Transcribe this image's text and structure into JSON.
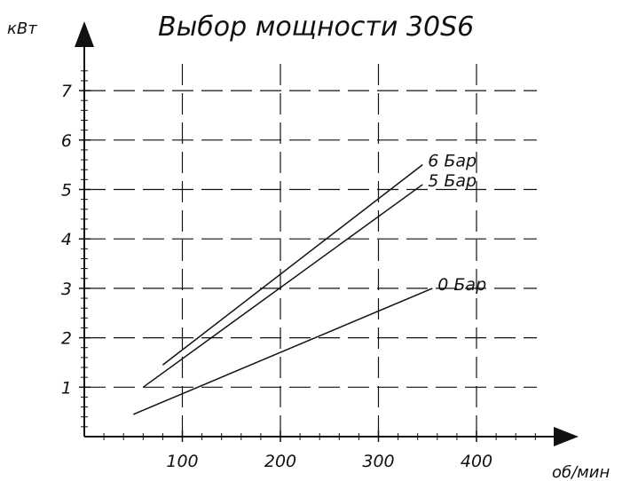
{
  "chart_data": {
    "type": "line",
    "title": "Выбор мощности 30S6",
    "xlabel": "об/мин",
    "ylabel": "кВт",
    "xlim": [
      0,
      450
    ],
    "ylim": [
      0,
      7.5
    ],
    "x_ticks": [
      100,
      200,
      300,
      400
    ],
    "y_ticks": [
      1,
      2,
      3,
      4,
      5,
      6,
      7
    ],
    "x_tick_labels": [
      "100",
      "200",
      "300",
      "400"
    ],
    "y_tick_labels": [
      "1",
      "2",
      "3",
      "4",
      "5",
      "6",
      "7"
    ],
    "grid": true,
    "series": [
      {
        "name": "6 Бар",
        "x": [
          80,
          345
        ],
        "y": [
          1.45,
          5.5
        ]
      },
      {
        "name": "5 Бар",
        "x": [
          60,
          345
        ],
        "y": [
          1.0,
          5.1
        ]
      },
      {
        "name": "0 Бар",
        "x": [
          50,
          355
        ],
        "y": [
          0.45,
          3.0
        ]
      }
    ]
  }
}
